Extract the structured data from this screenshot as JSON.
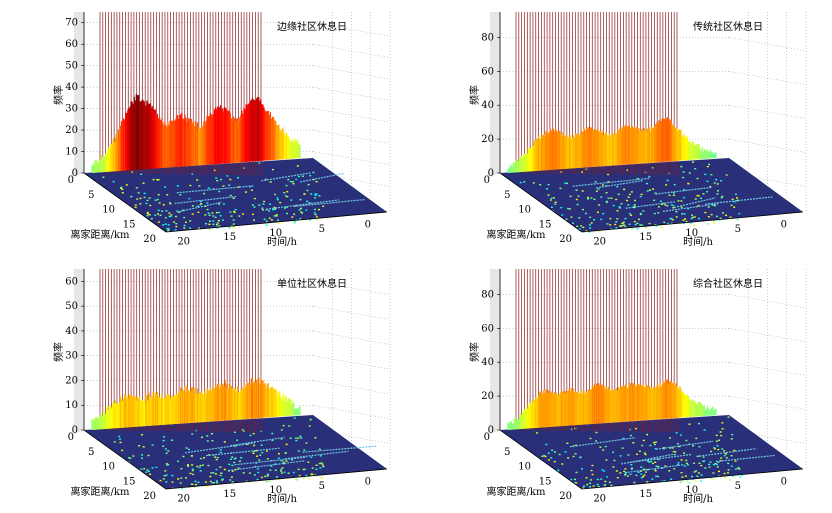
{
  "chart_data": [
    {
      "type": "3d-bar",
      "title": "边缘社区休息日",
      "zlabel": "频率",
      "xlabel": "离家距离/km",
      "ylabel": "时间/h",
      "z_ticks": [
        0,
        10,
        20,
        30,
        40,
        50,
        60,
        70
      ],
      "distance_ticks": [
        0,
        5,
        10,
        15,
        20
      ],
      "time_ticks": [
        0,
        5,
        10,
        15,
        20
      ],
      "zlim": [
        0,
        75
      ],
      "peak_profile": [
        4,
        6,
        8,
        12,
        18,
        24,
        30,
        34,
        32,
        30,
        26,
        22,
        20,
        22,
        24,
        22,
        20,
        18,
        21,
        24,
        27,
        25,
        22,
        20,
        24,
        28,
        30,
        26,
        22,
        18,
        14,
        10,
        8,
        6
      ]
    },
    {
      "type": "3d-bar",
      "title": "传统社区休息日",
      "zlabel": "频率",
      "xlabel": "离家距离/km",
      "ylabel": "时间/h",
      "z_ticks": [
        0,
        20,
        40,
        60,
        80
      ],
      "distance_ticks": [
        0,
        5,
        10,
        15,
        20
      ],
      "time_ticks": [
        0,
        5,
        10,
        15,
        20
      ],
      "zlim": [
        0,
        95
      ],
      "peak_profile": [
        3,
        5,
        8,
        12,
        16,
        20,
        22,
        24,
        22,
        20,
        18,
        20,
        22,
        24,
        22,
        20,
        18,
        19,
        21,
        23,
        22,
        20,
        19,
        21,
        24,
        26,
        22,
        18,
        14,
        10,
        8,
        5,
        4,
        3
      ]
    },
    {
      "type": "3d-bar",
      "title": "单位社区休息日",
      "zlabel": "频率",
      "xlabel": "离家距离/km",
      "ylabel": "时间/h",
      "z_ticks": [
        0,
        10,
        20,
        30,
        40,
        50,
        60
      ],
      "distance_ticks": [
        0,
        5,
        10,
        15,
        20
      ],
      "time_ticks": [
        0,
        5,
        10,
        15,
        20
      ],
      "zlim": [
        0,
        65
      ],
      "peak_profile": [
        3,
        5,
        7,
        9,
        11,
        12,
        13,
        12,
        11,
        12,
        13,
        12,
        11,
        12,
        13,
        14,
        13,
        12,
        12,
        13,
        14,
        15,
        13,
        12,
        13,
        15,
        16,
        14,
        12,
        10,
        8,
        6,
        4,
        3
      ]
    },
    {
      "type": "3d-bar",
      "title": "综合社区休息日",
      "zlabel": "频率",
      "xlabel": "离家距离/km",
      "ylabel": "时间/h",
      "z_ticks": [
        0,
        20,
        40,
        60,
        80
      ],
      "distance_ticks": [
        0,
        5,
        10,
        15,
        20
      ],
      "time_ticks": [
        0,
        5,
        10,
        15,
        20
      ],
      "zlim": [
        0,
        95
      ],
      "peak_profile": [
        3,
        5,
        8,
        12,
        16,
        20,
        21,
        20,
        19,
        20,
        21,
        20,
        19,
        21,
        23,
        22,
        20,
        19,
        20,
        21,
        22,
        21,
        20,
        19,
        20,
        22,
        21,
        18,
        14,
        10,
        8,
        5,
        4,
        3
      ]
    }
  ]
}
